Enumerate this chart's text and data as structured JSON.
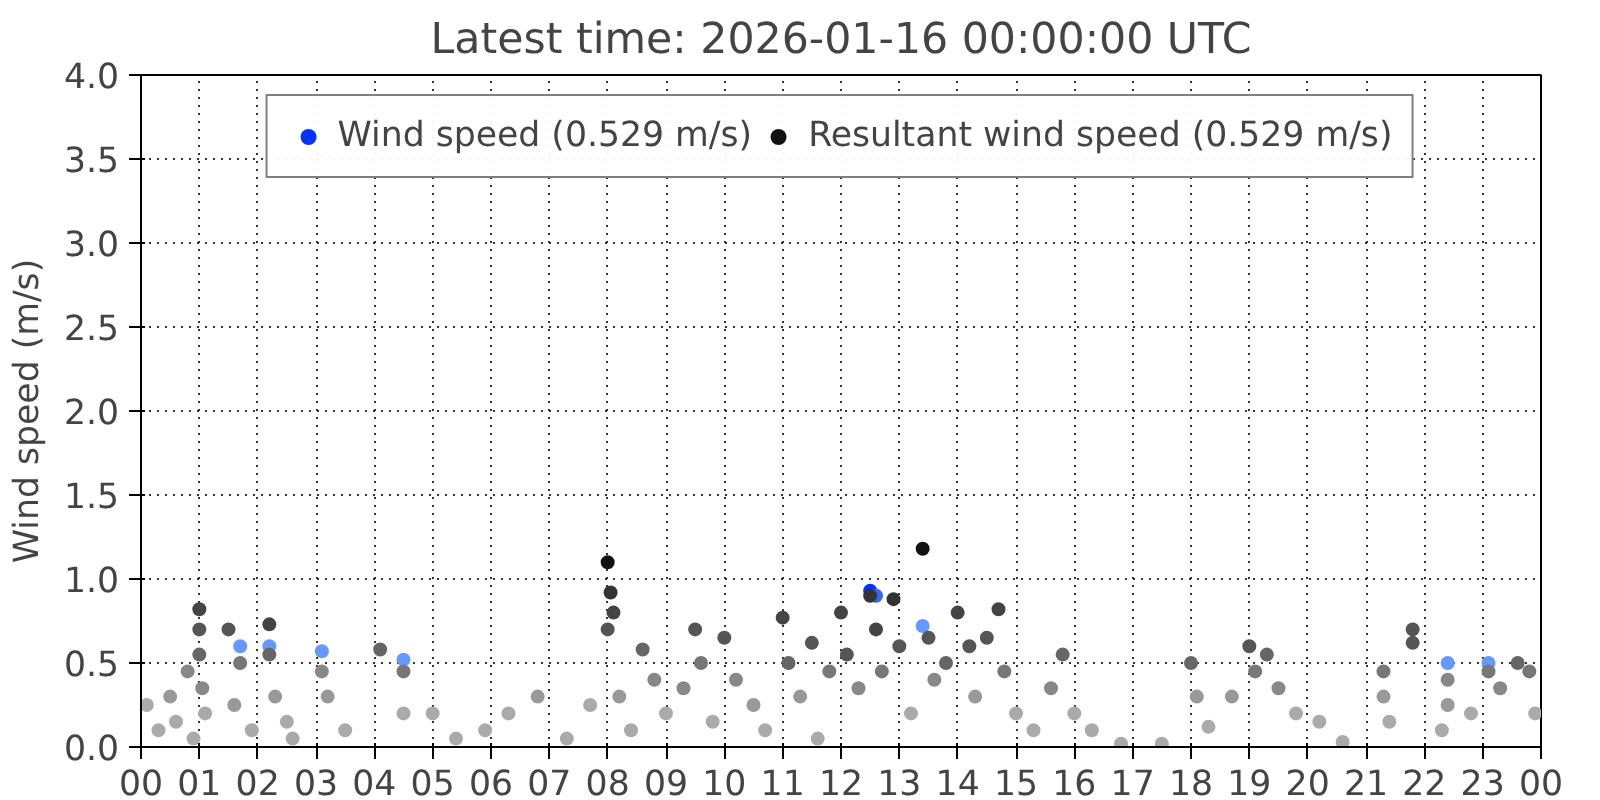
{
  "chart_data": {
    "type": "scatter",
    "title": "Latest time: 2026-01-16 00:00:00 UTC",
    "ylabel": "Wind speed (m/s)",
    "xlim": [
      0,
      24
    ],
    "ylim": [
      0,
      4
    ],
    "xticks": [
      {
        "value": 0,
        "label": "00"
      },
      {
        "value": 1,
        "label": "01"
      },
      {
        "value": 2,
        "label": "02"
      },
      {
        "value": 3,
        "label": "03"
      },
      {
        "value": 4,
        "label": "04"
      },
      {
        "value": 5,
        "label": "05"
      },
      {
        "value": 6,
        "label": "06"
      },
      {
        "value": 7,
        "label": "07"
      },
      {
        "value": 8,
        "label": "08"
      },
      {
        "value": 9,
        "label": "09"
      },
      {
        "value": 10,
        "label": "10"
      },
      {
        "value": 11,
        "label": "11"
      },
      {
        "value": 12,
        "label": "12"
      },
      {
        "value": 13,
        "label": "13"
      },
      {
        "value": 14,
        "label": "14"
      },
      {
        "value": 15,
        "label": "15"
      },
      {
        "value": 16,
        "label": "16"
      },
      {
        "value": 17,
        "label": "17"
      },
      {
        "value": 18,
        "label": "18"
      },
      {
        "value": 19,
        "label": "19"
      },
      {
        "value": 20,
        "label": "20"
      },
      {
        "value": 21,
        "label": "21"
      },
      {
        "value": 22,
        "label": "22"
      },
      {
        "value": 23,
        "label": "23"
      },
      {
        "value": 24,
        "label": "00"
      }
    ],
    "yticks": [
      {
        "value": 0,
        "label": "0.0"
      },
      {
        "value": 0.5,
        "label": "0.5"
      },
      {
        "value": 1,
        "label": "1.0"
      },
      {
        "value": 1.5,
        "label": "1.5"
      },
      {
        "value": 2,
        "label": "2.0"
      },
      {
        "value": 2.5,
        "label": "2.5"
      },
      {
        "value": 3,
        "label": "3.0"
      },
      {
        "value": 3.5,
        "label": "3.5"
      },
      {
        "value": 4,
        "label": "4.0"
      }
    ],
    "grid": true,
    "legend": "top",
    "marker": "circle",
    "series": [
      {
        "name": "Wind speed (0.529 m/s)",
        "color": "#0033ff",
        "x": [
          1.7,
          2.2,
          3.1,
          4.5,
          12.5,
          12.6,
          13.4,
          22.4,
          23.1
        ],
        "values": [
          0.6,
          0.6,
          0.57,
          0.52,
          0.93,
          0.9,
          0.72,
          0.5,
          0.5
        ],
        "colors": [
          "#6699ff",
          "#6699ff",
          "#6699ff",
          "#6699ff",
          "#0033ff",
          "#3366ff",
          "#6699ff",
          "#6699ff",
          "#6699ff"
        ]
      },
      {
        "name": "Resultant wind speed (0.529 m/s)",
        "color": "#111111",
        "x": [
          0.1,
          0.3,
          0.5,
          0.6,
          0.8,
          0.9,
          1.0,
          1.0,
          1.0,
          1.05,
          1.1,
          1.5,
          1.6,
          1.7,
          1.9,
          2.2,
          2.2,
          2.3,
          2.5,
          2.6,
          3.1,
          3.2,
          3.5,
          4.1,
          4.5,
          4.5,
          5.0,
          5.4,
          5.9,
          6.3,
          6.8,
          7.3,
          7.7,
          8.0,
          8.05,
          8.1,
          8.0,
          8.2,
          8.4,
          8.6,
          8.8,
          9.0,
          9.3,
          9.5,
          9.6,
          9.8,
          10.0,
          10.2,
          10.5,
          10.7,
          11.0,
          11.1,
          11.3,
          11.5,
          11.6,
          11.8,
          12.0,
          12.1,
          12.3,
          12.5,
          12.6,
          12.7,
          12.9,
          13.0,
          13.2,
          13.4,
          13.5,
          13.6,
          13.8,
          14.0,
          14.2,
          14.3,
          14.5,
          14.7,
          14.8,
          15.0,
          15.3,
          15.6,
          15.8,
          16.0,
          16.3,
          16.8,
          17.5,
          18.0,
          18.1,
          18.3,
          18.7,
          19.0,
          19.1,
          19.3,
          19.5,
          19.8,
          20.2,
          20.6,
          21.3,
          21.3,
          21.4,
          21.8,
          21.8,
          22.3,
          22.4,
          22.4,
          22.8,
          23.1,
          23.3,
          23.6,
          23.8,
          23.9
        ],
        "values": [
          0.25,
          0.1,
          0.3,
          0.15,
          0.45,
          0.05,
          0.82,
          0.7,
          0.55,
          0.35,
          0.2,
          0.7,
          0.25,
          0.5,
          0.1,
          0.73,
          0.55,
          0.3,
          0.15,
          0.05,
          0.45,
          0.3,
          0.1,
          0.58,
          0.45,
          0.2,
          0.2,
          0.05,
          0.1,
          0.2,
          0.3,
          0.05,
          0.25,
          1.1,
          0.92,
          0.8,
          0.7,
          0.3,
          0.1,
          0.58,
          0.4,
          0.2,
          0.35,
          0.7,
          0.5,
          0.15,
          0.65,
          0.4,
          0.25,
          0.1,
          0.77,
          0.5,
          0.3,
          0.62,
          0.05,
          0.45,
          0.8,
          0.55,
          0.35,
          0.9,
          0.7,
          0.45,
          0.88,
          0.6,
          0.2,
          1.18,
          0.65,
          0.4,
          0.5,
          0.8,
          0.6,
          0.3,
          0.65,
          0.82,
          0.45,
          0.2,
          0.1,
          0.35,
          0.55,
          0.2,
          0.1,
          0.02,
          0.02,
          0.5,
          0.3,
          0.12,
          0.3,
          0.6,
          0.45,
          0.55,
          0.35,
          0.2,
          0.15,
          0.03,
          0.45,
          0.3,
          0.15,
          0.7,
          0.62,
          0.1,
          0.4,
          0.25,
          0.2,
          0.45,
          0.35,
          0.5,
          0.45,
          0.2
        ],
        "colors": [
          "#aaaaaa",
          "#aaaaaa",
          "#999999",
          "#aaaaaa",
          "#888888",
          "#aaaaaa",
          "#444444",
          "#555555",
          "#666666",
          "#888888",
          "#aaaaaa",
          "#555555",
          "#999999",
          "#777777",
          "#aaaaaa",
          "#444444",
          "#666666",
          "#999999",
          "#aaaaaa",
          "#aaaaaa",
          "#888888",
          "#999999",
          "#aaaaaa",
          "#666666",
          "#777777",
          "#aaaaaa",
          "#aaaaaa",
          "#aaaaaa",
          "#aaaaaa",
          "#aaaaaa",
          "#999999",
          "#aaaaaa",
          "#aaaaaa",
          "#111111",
          "#333333",
          "#444444",
          "#555555",
          "#999999",
          "#aaaaaa",
          "#666666",
          "#888888",
          "#aaaaaa",
          "#888888",
          "#555555",
          "#777777",
          "#aaaaaa",
          "#555555",
          "#888888",
          "#999999",
          "#aaaaaa",
          "#444444",
          "#666666",
          "#999999",
          "#555555",
          "#aaaaaa",
          "#777777",
          "#444444",
          "#555555",
          "#888888",
          "#333333",
          "#444444",
          "#777777",
          "#333333",
          "#555555",
          "#aaaaaa",
          "#111111",
          "#555555",
          "#888888",
          "#666666",
          "#444444",
          "#555555",
          "#999999",
          "#555555",
          "#444444",
          "#777777",
          "#aaaaaa",
          "#aaaaaa",
          "#888888",
          "#666666",
          "#aaaaaa",
          "#aaaaaa",
          "#aaaaaa",
          "#aaaaaa",
          "#666666",
          "#999999",
          "#aaaaaa",
          "#999999",
          "#555555",
          "#777777",
          "#666666",
          "#888888",
          "#aaaaaa",
          "#aaaaaa",
          "#aaaaaa",
          "#777777",
          "#999999",
          "#aaaaaa",
          "#555555",
          "#555555",
          "#aaaaaa",
          "#888888",
          "#999999",
          "#aaaaaa",
          "#777777",
          "#888888",
          "#666666",
          "#777777",
          "#aaaaaa"
        ]
      }
    ]
  }
}
